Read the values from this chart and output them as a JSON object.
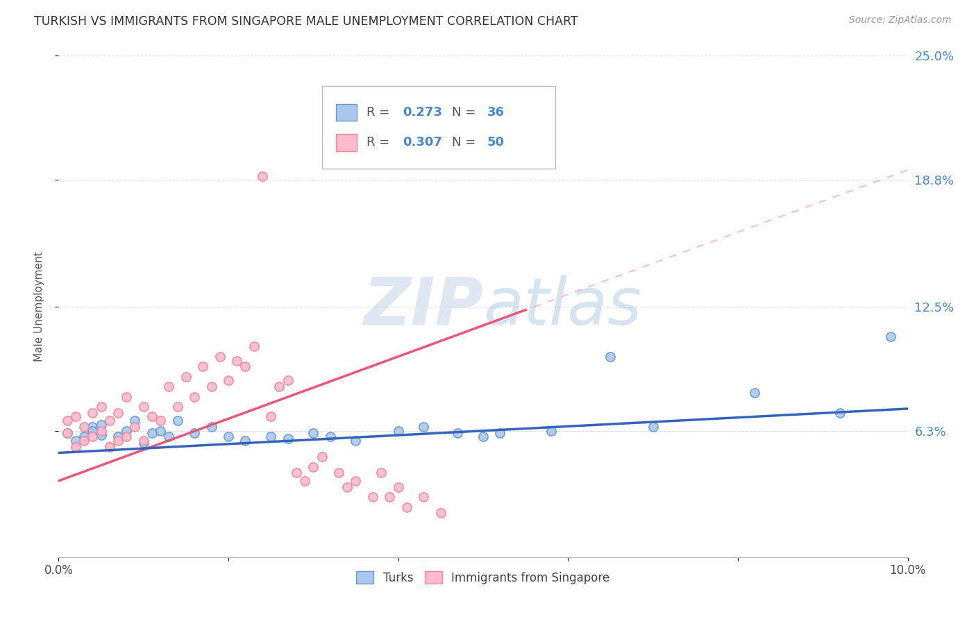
{
  "title": "TURKISH VS IMMIGRANTS FROM SINGAPORE MALE UNEMPLOYMENT CORRELATION CHART",
  "source": "Source: ZipAtlas.com",
  "ylabel": "Male Unemployment",
  "xmin": 0.0,
  "xmax": 0.1,
  "ymin": 0.0,
  "ymax": 0.25,
  "yticks": [
    0.063,
    0.125,
    0.188,
    0.25
  ],
  "ytick_labels": [
    "6.3%",
    "12.5%",
    "18.8%",
    "25.0%"
  ],
  "turks_x": [
    0.001,
    0.002,
    0.003,
    0.004,
    0.004,
    0.005,
    0.005,
    0.006,
    0.007,
    0.008,
    0.009,
    0.01,
    0.011,
    0.012,
    0.013,
    0.014,
    0.016,
    0.018,
    0.02,
    0.022,
    0.025,
    0.027,
    0.03,
    0.032,
    0.035,
    0.04,
    0.043,
    0.047,
    0.05,
    0.052,
    0.058,
    0.065,
    0.07,
    0.082,
    0.092,
    0.098
  ],
  "turks_y": [
    0.062,
    0.058,
    0.06,
    0.065,
    0.063,
    0.061,
    0.066,
    0.055,
    0.06,
    0.063,
    0.068,
    0.057,
    0.062,
    0.063,
    0.06,
    0.068,
    0.062,
    0.065,
    0.06,
    0.058,
    0.06,
    0.059,
    0.062,
    0.06,
    0.058,
    0.063,
    0.065,
    0.062,
    0.06,
    0.062,
    0.063,
    0.1,
    0.065,
    0.082,
    0.072,
    0.11
  ],
  "singapore_x": [
    0.001,
    0.001,
    0.002,
    0.002,
    0.003,
    0.003,
    0.004,
    0.004,
    0.005,
    0.005,
    0.006,
    0.006,
    0.007,
    0.007,
    0.008,
    0.008,
    0.009,
    0.01,
    0.01,
    0.011,
    0.012,
    0.013,
    0.014,
    0.015,
    0.016,
    0.017,
    0.018,
    0.019,
    0.02,
    0.021,
    0.022,
    0.023,
    0.024,
    0.025,
    0.026,
    0.027,
    0.028,
    0.029,
    0.03,
    0.031,
    0.033,
    0.034,
    0.035,
    0.037,
    0.038,
    0.039,
    0.04,
    0.041,
    0.043,
    0.045
  ],
  "singapore_y": [
    0.062,
    0.068,
    0.055,
    0.07,
    0.058,
    0.065,
    0.06,
    0.072,
    0.063,
    0.075,
    0.055,
    0.068,
    0.058,
    0.072,
    0.06,
    0.08,
    0.065,
    0.058,
    0.075,
    0.07,
    0.068,
    0.085,
    0.075,
    0.09,
    0.08,
    0.095,
    0.085,
    0.1,
    0.088,
    0.098,
    0.095,
    0.105,
    0.19,
    0.07,
    0.085,
    0.088,
    0.042,
    0.038,
    0.045,
    0.05,
    0.042,
    0.035,
    0.038,
    0.03,
    0.042,
    0.03,
    0.035,
    0.025,
    0.03,
    0.022
  ],
  "turks_color": "#aac8ee",
  "turks_edge_color": "#6699cc",
  "singapore_color": "#ffbbcc",
  "singapore_edge_color": "#ee8899",
  "turks_line_color": "#3366bb",
  "singapore_line_color": "#ee5577",
  "singapore_dash_color": "#ffaabb",
  "turks_R": 0.273,
  "turks_N": 36,
  "singapore_R": 0.307,
  "singapore_N": 50,
  "watermark_zip": "ZIP",
  "watermark_atlas": "atlas",
  "background_color": "#ffffff",
  "grid_color": "#dddddd",
  "title_color": "#333333",
  "right_axis_color": "#4488cc",
  "marker_size": 90,
  "turks_line_intercept": 0.052,
  "turks_line_slope": 0.22,
  "singapore_line_intercept": 0.038,
  "singapore_line_slope": 1.55,
  "singapore_dash_intercept": 0.038,
  "singapore_dash_slope": 1.55
}
